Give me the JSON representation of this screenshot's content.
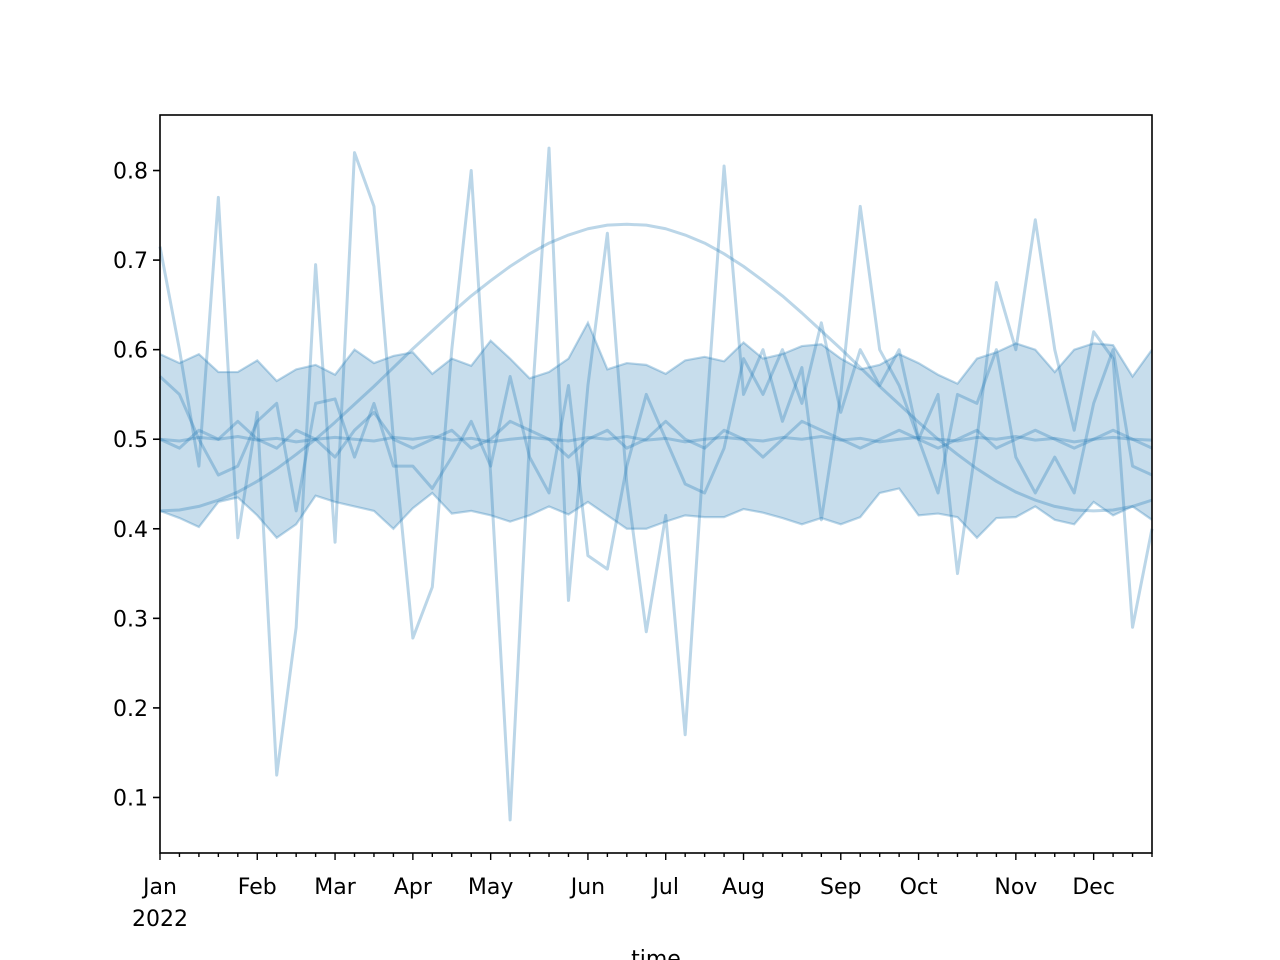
{
  "chart_data": {
    "type": "line",
    "xlabel": "time",
    "year_label": "2022",
    "categories": [
      "Jan",
      null,
      null,
      null,
      null,
      "Feb",
      null,
      null,
      null,
      "Mar",
      null,
      null,
      null,
      "Apr",
      null,
      null,
      null,
      "May",
      null,
      null,
      null,
      null,
      "Jun",
      null,
      null,
      null,
      "Jul",
      null,
      null,
      null,
      "Aug",
      null,
      null,
      null,
      null,
      "Sep",
      null,
      null,
      null,
      "Oct",
      null,
      null,
      null,
      null,
      "Nov",
      null,
      null,
      null,
      "Dec",
      null,
      null,
      null
    ],
    "ylim": [
      0.038,
      0.862
    ],
    "yticks": [
      0.1,
      0.2,
      0.3,
      0.4,
      0.5,
      0.6,
      0.7,
      0.8
    ],
    "alpha": 0.3,
    "band": {
      "color": "#1f77b4",
      "alpha": 0.25,
      "upper": [
        0.595,
        0.585,
        0.595,
        0.575,
        0.575,
        0.588,
        0.565,
        0.578,
        0.583,
        0.572,
        0.6,
        0.585,
        0.593,
        0.597,
        0.573,
        0.59,
        0.582,
        0.61,
        0.59,
        0.568,
        0.575,
        0.59,
        0.63,
        0.578,
        0.585,
        0.583,
        0.573,
        0.588,
        0.592,
        0.587,
        0.608,
        0.59,
        0.595,
        0.604,
        0.606,
        0.59,
        0.578,
        0.583,
        0.595,
        0.585,
        0.572,
        0.562,
        0.59,
        0.597,
        0.607,
        0.6,
        0.575,
        0.6,
        0.607,
        0.605,
        0.57,
        0.6
      ],
      "lower": [
        0.42,
        0.412,
        0.402,
        0.43,
        0.435,
        0.415,
        0.39,
        0.405,
        0.437,
        0.43,
        0.425,
        0.42,
        0.4,
        0.423,
        0.44,
        0.417,
        0.42,
        0.415,
        0.408,
        0.415,
        0.425,
        0.416,
        0.43,
        0.415,
        0.4,
        0.4,
        0.408,
        0.415,
        0.413,
        0.413,
        0.422,
        0.418,
        0.412,
        0.405,
        0.412,
        0.405,
        0.413,
        0.44,
        0.445,
        0.415,
        0.417,
        0.413,
        0.39,
        0.412,
        0.413,
        0.425,
        0.41,
        0.405,
        0.43,
        0.415,
        0.425,
        0.41
      ]
    },
    "series": [
      {
        "color": "#1f77b4",
        "values": [
          0.42,
          0.421,
          0.425,
          0.432,
          0.441,
          0.453,
          0.467,
          0.483,
          0.5,
          0.519,
          0.539,
          0.559,
          0.58,
          0.601,
          0.621,
          0.641,
          0.66,
          0.677,
          0.693,
          0.707,
          0.719,
          0.728,
          0.735,
          0.739,
          0.74,
          0.739,
          0.735,
          0.728,
          0.719,
          0.707,
          0.693,
          0.677,
          0.66,
          0.641,
          0.621,
          0.601,
          0.58,
          0.559,
          0.539,
          0.519,
          0.5,
          0.483,
          0.467,
          0.453,
          0.441,
          0.432,
          0.425,
          0.421,
          0.42,
          0.421,
          0.425,
          0.432
        ]
      },
      {
        "color": "#1f77b4",
        "values": [
          0.715,
          0.6,
          0.47,
          0.77,
          0.39,
          0.53,
          0.125,
          0.29,
          0.695,
          0.385,
          0.82,
          0.76,
          0.5,
          0.278,
          0.335,
          0.6,
          0.8,
          0.46,
          0.075,
          0.5,
          0.825,
          0.32,
          0.56,
          0.73,
          0.45,
          0.285,
          0.415,
          0.17,
          0.5,
          0.805,
          0.55,
          0.6,
          0.52,
          0.58,
          0.41,
          0.55,
          0.76,
          0.6,
          0.56,
          0.5,
          0.55,
          0.35,
          0.5,
          0.675,
          0.6,
          0.745,
          0.6,
          0.51,
          0.62,
          0.59,
          0.29,
          0.4
        ]
      },
      {
        "color": "#1f77b4",
        "values": [
          0.57,
          0.55,
          0.5,
          0.46,
          0.47,
          0.52,
          0.54,
          0.42,
          0.54,
          0.545,
          0.48,
          0.54,
          0.47,
          0.47,
          0.445,
          0.48,
          0.52,
          0.47,
          0.57,
          0.48,
          0.44,
          0.56,
          0.37,
          0.355,
          0.47,
          0.55,
          0.5,
          0.45,
          0.44,
          0.49,
          0.59,
          0.55,
          0.6,
          0.54,
          0.63,
          0.53,
          0.6,
          0.56,
          0.6,
          0.5,
          0.44,
          0.55,
          0.54,
          0.6,
          0.48,
          0.44,
          0.48,
          0.44,
          0.54,
          0.6,
          0.47,
          0.46
        ]
      },
      {
        "color": "#1f77b4",
        "values": [
          0.5,
          0.49,
          0.51,
          0.5,
          0.52,
          0.5,
          0.49,
          0.51,
          0.5,
          0.48,
          0.51,
          0.53,
          0.5,
          0.49,
          0.5,
          0.51,
          0.49,
          0.5,
          0.52,
          0.51,
          0.5,
          0.48,
          0.5,
          0.51,
          0.49,
          0.5,
          0.52,
          0.5,
          0.49,
          0.51,
          0.5,
          0.48,
          0.5,
          0.52,
          0.51,
          0.5,
          0.49,
          0.5,
          0.51,
          0.5,
          0.49,
          0.5,
          0.51,
          0.49,
          0.5,
          0.51,
          0.5,
          0.49,
          0.5,
          0.51,
          0.5,
          0.49
        ]
      },
      {
        "color": "#1f77b4",
        "values": [
          0.5,
          0.498,
          0.502,
          0.5,
          0.503,
          0.499,
          0.501,
          0.497,
          0.5,
          0.502,
          0.5,
          0.498,
          0.502,
          0.5,
          0.503,
          0.499,
          0.501,
          0.497,
          0.5,
          0.502,
          0.5,
          0.498,
          0.502,
          0.5,
          0.503,
          0.499,
          0.501,
          0.497,
          0.5,
          0.502,
          0.5,
          0.498,
          0.502,
          0.5,
          0.503,
          0.499,
          0.501,
          0.497,
          0.5,
          0.502,
          0.5,
          0.498,
          0.502,
          0.5,
          0.503,
          0.499,
          0.501,
          0.497,
          0.5,
          0.502,
          0.5,
          0.499
        ]
      }
    ]
  }
}
